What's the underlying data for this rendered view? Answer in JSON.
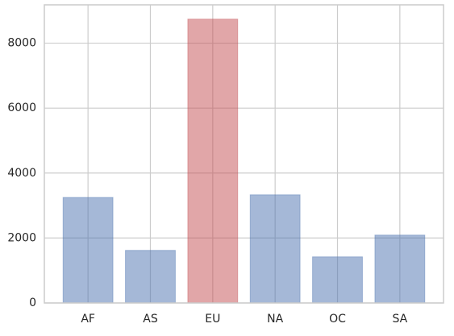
{
  "chart_data": {
    "type": "bar",
    "categories": [
      "AF",
      "AS",
      "EU",
      "NA",
      "OC",
      "SA"
    ],
    "values": [
      3250,
      1620,
      8740,
      3330,
      1420,
      2090
    ],
    "colors": [
      "#4c72b0",
      "#4c72b0",
      "#c44e52",
      "#4c72b0",
      "#4c72b0",
      "#4c72b0"
    ],
    "ylim": [
      0,
      9180
    ],
    "yticks": [
      0,
      2000,
      4000,
      6000,
      8000
    ],
    "grid": true
  }
}
